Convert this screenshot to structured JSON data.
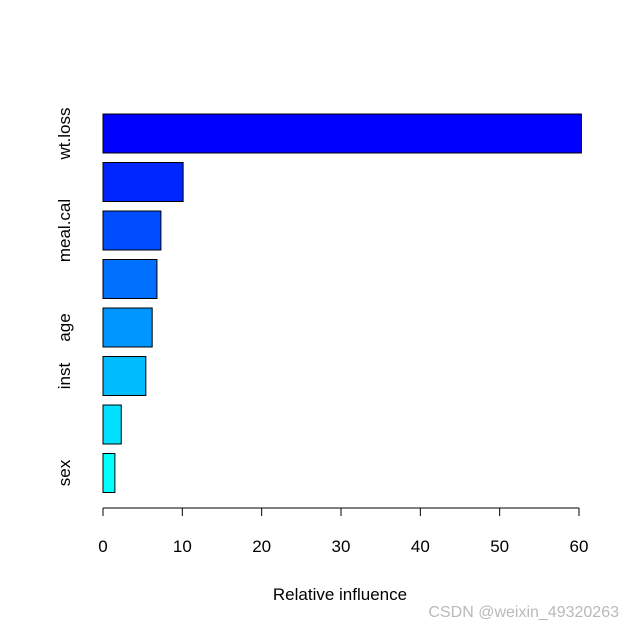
{
  "chart_data": {
    "type": "bar",
    "orientation": "horizontal",
    "categories": [
      "wt.loss",
      "",
      "meal.cal",
      "",
      "age",
      "inst",
      "",
      "sex"
    ],
    "values": [
      60.3,
      10.1,
      7.3,
      6.8,
      6.2,
      5.4,
      2.3,
      1.5
    ],
    "colors": [
      "#0000ff",
      "#0026ff",
      "#004cff",
      "#0071ff",
      "#0096ff",
      "#00bcff",
      "#00e1ff",
      "#00ffff"
    ],
    "xlabel": "Relative influence",
    "xlim": [
      0,
      60
    ],
    "xticks": [
      0,
      10,
      20,
      30,
      40,
      50,
      60
    ],
    "grid": false
  },
  "watermark": "CSDN @weixin_49320263"
}
